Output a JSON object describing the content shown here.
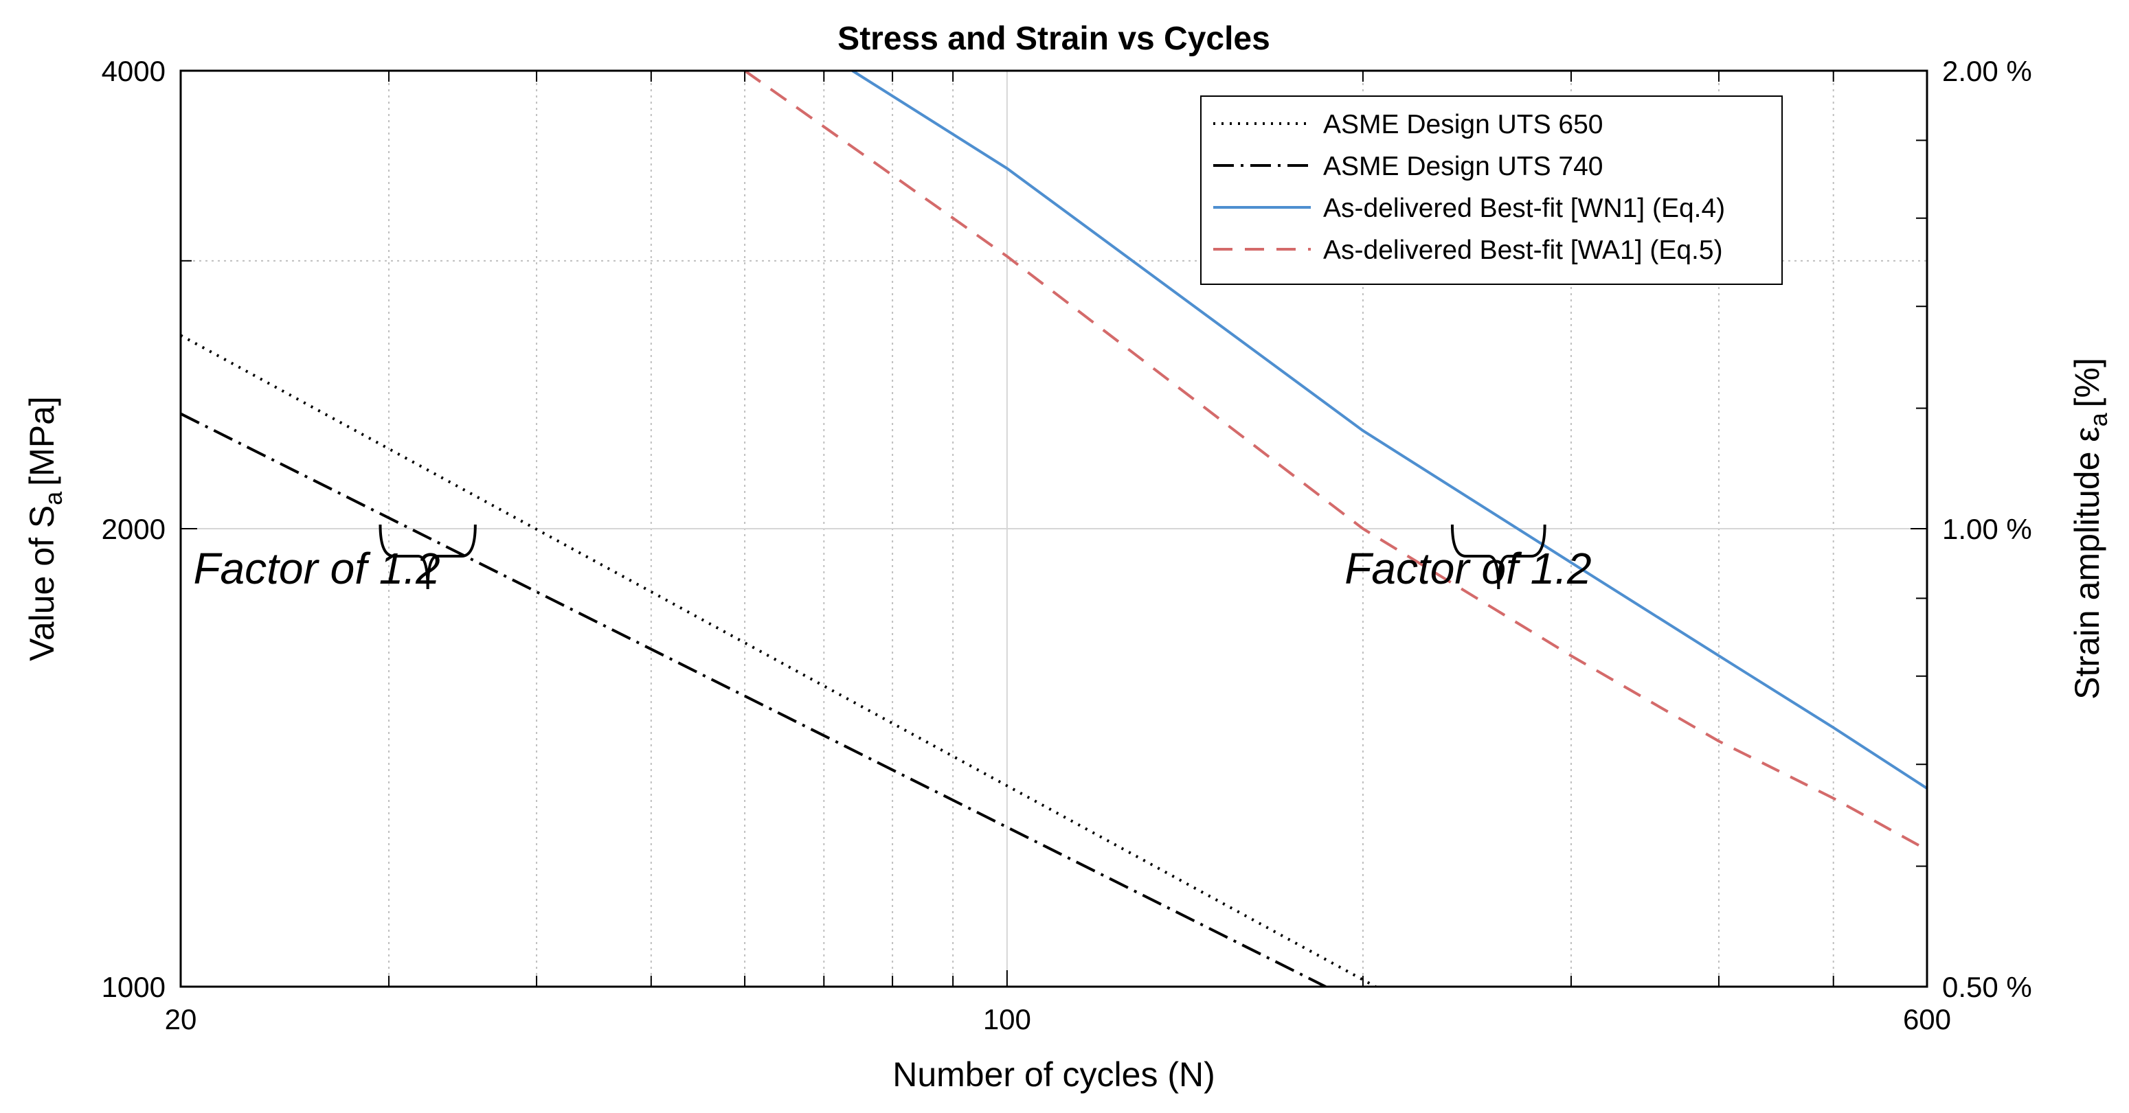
{
  "chart_data": {
    "type": "line",
    "title": "Stress and Strain vs Cycles",
    "xlabel": "Number of cycles (N)",
    "ylabel": "Value of S",
    "ylabel_sub": "a",
    "ylabel_unit": "[MPa]",
    "y2label": "Strain amplitude ε",
    "y2label_sub": "a",
    "y2label_unit": "[%]",
    "xscale": "log",
    "yscale": "log",
    "xlim": [
      20,
      600
    ],
    "ylim": [
      1000,
      4000
    ],
    "y2lim": [
      0.5,
      2.0
    ],
    "grid": true,
    "legend_position": "top-right",
    "x_ticks": [
      {
        "value": 20,
        "label": "20"
      },
      {
        "value": 100,
        "label": "100"
      },
      {
        "value": 600,
        "label": "600"
      }
    ],
    "y_ticks": [
      {
        "value": 1000,
        "label": "1000"
      },
      {
        "value": 2000,
        "label": "2000"
      },
      {
        "value": 4000,
        "label": "4000"
      }
    ],
    "y2_ticks": [
      {
        "value": 0.5,
        "label": "0.50 %"
      },
      {
        "value": 1.0,
        "label": "1.00 %"
      },
      {
        "value": 2.0,
        "label": "2.00 %"
      }
    ],
    "x_minor_ticks": [
      30,
      40,
      50,
      60,
      70,
      80,
      90,
      200,
      300,
      400,
      500
    ],
    "y_minor_ticks": [
      3000
    ],
    "y2_minor_ticks": [
      0.6,
      0.7,
      0.8,
      0.9,
      1.2,
      1.4,
      1.6,
      1.8
    ],
    "series": [
      {
        "name": "ASME Design UTS 650",
        "style": "dotted",
        "color": "#000000",
        "x": [
          20,
          205
        ],
        "y": [
          2680,
          1000
        ]
      },
      {
        "name": "ASME Design UTS 740",
        "style": "dashdot",
        "color": "#000000",
        "x": [
          20,
          186
        ],
        "y": [
          2380,
          1000
        ]
      },
      {
        "name": "As-delivered Best-fit [WN1] (Eq.4)",
        "style": "solid",
        "color": "#4e8fd0",
        "x": [
          74,
          100,
          200,
          300,
          400,
          500,
          600
        ],
        "y": [
          4000,
          3450,
          2320,
          1900,
          1650,
          1480,
          1350
        ]
      },
      {
        "name": "As-delivered Best-fit [WA1] (Eq.5)",
        "style": "dashed",
        "color": "#d46a6a",
        "x": [
          60,
          100,
          200,
          300,
          400,
          500,
          600
        ],
        "y": [
          4000,
          3020,
          2000,
          1650,
          1450,
          1330,
          1230
        ]
      }
    ],
    "annotations": [
      {
        "text": "Factor of 1.2",
        "x_from": 29.5,
        "x_to": 35.5,
        "y": 2000,
        "label_x": 20.5,
        "label_y": 1840
      },
      {
        "text": "Factor of 1.2",
        "x_from": 238,
        "x_to": 285,
        "y": 2000,
        "label_x": 193,
        "label_y": 1840
      }
    ]
  }
}
